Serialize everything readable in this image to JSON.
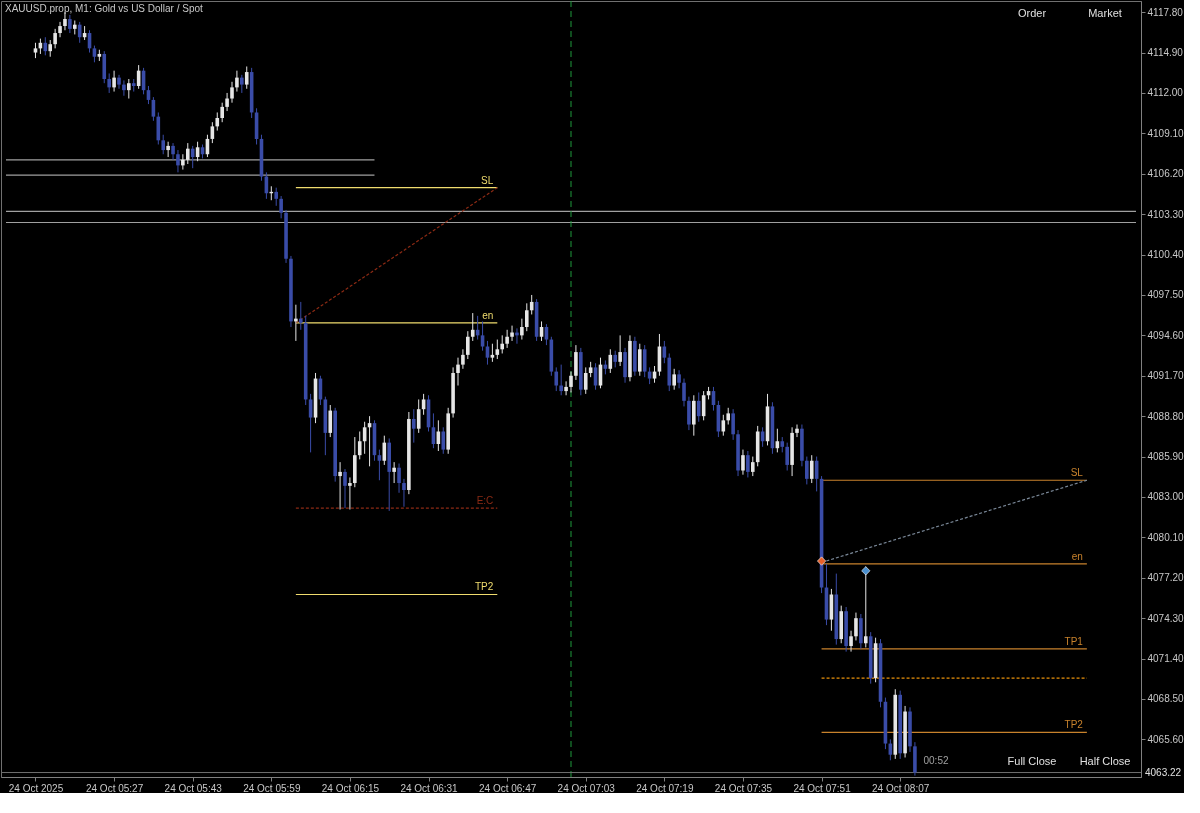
{
  "chart_data": {
    "type": "candlestick",
    "title": "XAUUSD.prop, M1:  Gold vs US Dollar / Spot",
    "x": [
      "2025-10-24T05:11",
      "2025-10-24T05:12",
      "2025-10-24T05:13",
      "2025-10-24T05:14",
      "2025-10-24T05:15",
      "2025-10-24T05:16",
      "2025-10-24T05:17",
      "2025-10-24T05:18",
      "2025-10-24T05:19",
      "2025-10-24T05:20",
      "2025-10-24T05:21",
      "2025-10-24T05:22",
      "2025-10-24T05:23",
      "2025-10-24T05:24",
      "2025-10-24T05:25",
      "2025-10-24T05:26",
      "2025-10-24T05:27",
      "2025-10-24T05:28",
      "2025-10-24T05:29",
      "2025-10-24T05:30",
      "2025-10-24T05:31",
      "2025-10-24T05:32",
      "2025-10-24T05:33",
      "2025-10-24T05:34",
      "2025-10-24T05:35",
      "2025-10-24T05:36",
      "2025-10-24T05:37",
      "2025-10-24T05:38",
      "2025-10-24T05:39",
      "2025-10-24T05:40",
      "2025-10-24T05:41",
      "2025-10-24T05:42",
      "2025-10-24T05:43",
      "2025-10-24T05:44",
      "2025-10-24T05:45",
      "2025-10-24T05:46",
      "2025-10-24T05:47",
      "2025-10-24T05:48",
      "2025-10-24T05:49",
      "2025-10-24T05:50",
      "2025-10-24T05:51",
      "2025-10-24T05:52",
      "2025-10-24T05:53",
      "2025-10-24T05:54",
      "2025-10-24T05:55",
      "2025-10-24T05:56",
      "2025-10-24T05:57",
      "2025-10-24T05:58",
      "2025-10-24T05:59",
      "2025-10-24T06:00",
      "2025-10-24T06:01",
      "2025-10-24T06:02",
      "2025-10-24T06:03",
      "2025-10-24T06:04",
      "2025-10-24T06:05",
      "2025-10-24T06:06",
      "2025-10-24T06:07",
      "2025-10-24T06:08",
      "2025-10-24T06:09",
      "2025-10-24T06:10",
      "2025-10-24T06:11",
      "2025-10-24T06:12",
      "2025-10-24T06:13",
      "2025-10-24T06:14",
      "2025-10-24T06:15",
      "2025-10-24T06:16",
      "2025-10-24T06:17",
      "2025-10-24T06:18",
      "2025-10-24T06:19",
      "2025-10-24T06:20",
      "2025-10-24T06:21",
      "2025-10-24T06:22",
      "2025-10-24T06:23",
      "2025-10-24T06:24",
      "2025-10-24T06:25",
      "2025-10-24T06:26",
      "2025-10-24T06:27",
      "2025-10-24T06:28",
      "2025-10-24T06:29",
      "2025-10-24T06:30",
      "2025-10-24T06:31",
      "2025-10-24T06:32",
      "2025-10-24T06:33",
      "2025-10-24T06:34",
      "2025-10-24T06:35",
      "2025-10-24T06:36",
      "2025-10-24T06:37",
      "2025-10-24T06:38",
      "2025-10-24T06:39",
      "2025-10-24T06:40",
      "2025-10-24T06:41",
      "2025-10-24T06:42",
      "2025-10-24T06:43",
      "2025-10-24T06:44",
      "2025-10-24T06:45",
      "2025-10-24T06:46",
      "2025-10-24T06:47",
      "2025-10-24T06:48",
      "2025-10-24T06:49",
      "2025-10-24T06:50",
      "2025-10-24T06:51",
      "2025-10-24T06:52",
      "2025-10-24T06:53",
      "2025-10-24T06:54",
      "2025-10-24T06:55",
      "2025-10-24T06:56",
      "2025-10-24T06:57",
      "2025-10-24T06:58",
      "2025-10-24T06:59",
      "2025-10-24T07:00",
      "2025-10-24T07:01",
      "2025-10-24T07:02",
      "2025-10-24T07:03",
      "2025-10-24T07:04",
      "2025-10-24T07:05",
      "2025-10-24T07:06",
      "2025-10-24T07:07",
      "2025-10-24T07:08",
      "2025-10-24T07:09",
      "2025-10-24T07:10",
      "2025-10-24T07:11",
      "2025-10-24T07:12",
      "2025-10-24T07:13",
      "2025-10-24T07:14",
      "2025-10-24T07:15",
      "2025-10-24T07:16",
      "2025-10-24T07:17",
      "2025-10-24T07:18",
      "2025-10-24T07:19",
      "2025-10-24T07:20",
      "2025-10-24T07:21",
      "2025-10-24T07:22",
      "2025-10-24T07:23",
      "2025-10-24T07:24",
      "2025-10-24T07:25",
      "2025-10-24T07:26",
      "2025-10-24T07:27",
      "2025-10-24T07:28",
      "2025-10-24T07:29",
      "2025-10-24T07:30",
      "2025-10-24T07:31",
      "2025-10-24T07:32",
      "2025-10-24T07:33",
      "2025-10-24T07:34",
      "2025-10-24T07:35",
      "2025-10-24T07:36",
      "2025-10-24T07:37",
      "2025-10-24T07:38",
      "2025-10-24T07:39",
      "2025-10-24T07:40",
      "2025-10-24T07:41",
      "2025-10-24T07:42",
      "2025-10-24T07:43",
      "2025-10-24T07:44",
      "2025-10-24T07:45",
      "2025-10-24T07:46",
      "2025-10-24T07:47",
      "2025-10-24T07:48",
      "2025-10-24T07:49",
      "2025-10-24T07:50",
      "2025-10-24T07:51",
      "2025-10-24T07:52",
      "2025-10-24T07:53",
      "2025-10-24T07:54",
      "2025-10-24T07:55",
      "2025-10-24T07:56",
      "2025-10-24T07:57",
      "2025-10-24T07:58",
      "2025-10-24T07:59",
      "2025-10-24T08:00",
      "2025-10-24T08:01",
      "2025-10-24T08:02",
      "2025-10-24T08:03",
      "2025-10-24T08:04",
      "2025-10-24T08:05",
      "2025-10-24T08:06",
      "2025-10-24T08:07",
      "2025-10-24T08:08",
      "2025-10-24T08:09",
      "2025-10-24T08:10"
    ],
    "ohlc": [
      [
        4114.9,
        4115.6,
        4114.5,
        4115.2
      ],
      [
        4115.2,
        4115.9,
        4114.8,
        4115.6
      ],
      [
        4115.6,
        4116.0,
        4114.7,
        4115.0
      ],
      [
        4115.0,
        4115.8,
        4114.6,
        4115.5
      ],
      [
        4115.5,
        4116.6,
        4115.2,
        4116.3
      ],
      [
        4116.3,
        4117.1,
        4116.0,
        4116.8
      ],
      [
        4116.8,
        4117.8,
        4116.5,
        4117.3
      ],
      [
        4117.3,
        4117.6,
        4116.3,
        4116.6
      ],
      [
        4116.6,
        4117.2,
        4116.2,
        4116.9
      ],
      [
        4116.9,
        4117.1,
        4115.6,
        4116.0
      ],
      [
        4116.0,
        4116.8,
        4115.8,
        4116.3
      ],
      [
        4116.3,
        4116.5,
        4114.9,
        4115.2
      ],
      [
        4115.2,
        4115.4,
        4114.2,
        4114.6
      ],
      [
        4114.6,
        4115.1,
        4114.3,
        4114.8
      ],
      [
        4114.8,
        4115.0,
        4112.7,
        4113.0
      ],
      [
        4113.0,
        4113.4,
        4112.0,
        4112.4
      ],
      [
        4112.4,
        4113.6,
        4112.1,
        4113.1
      ],
      [
        4113.1,
        4113.3,
        4112.3,
        4112.6
      ],
      [
        4112.6,
        4112.9,
        4111.8,
        4112.2
      ],
      [
        4112.2,
        4113.0,
        4111.6,
        4112.7
      ],
      [
        4112.7,
        4113.0,
        4112.1,
        4112.5
      ],
      [
        4112.5,
        4114.0,
        4112.3,
        4113.6
      ],
      [
        4113.6,
        4113.8,
        4111.9,
        4112.2
      ],
      [
        4112.2,
        4112.5,
        4111.2,
        4111.5
      ],
      [
        4111.5,
        4111.7,
        4110.0,
        4110.3
      ],
      [
        4110.3,
        4110.6,
        4108.3,
        4108.6
      ],
      [
        4108.6,
        4109.0,
        4107.6,
        4107.9
      ],
      [
        4107.9,
        4108.5,
        4107.4,
        4108.2
      ],
      [
        4108.2,
        4108.4,
        4107.2,
        4107.6
      ],
      [
        4107.6,
        4107.9,
        4106.3,
        4106.8
      ],
      [
        4106.8,
        4107.6,
        4106.5,
        4107.2
      ],
      [
        4107.2,
        4108.4,
        4106.9,
        4108.0
      ],
      [
        4108.0,
        4108.2,
        4106.6,
        4107.4
      ],
      [
        4107.4,
        4108.5,
        4107.1,
        4108.1
      ],
      [
        4108.1,
        4108.3,
        4107.3,
        4107.6
      ],
      [
        4107.6,
        4109.0,
        4107.4,
        4108.7
      ],
      [
        4108.7,
        4109.9,
        4108.4,
        4109.6
      ],
      [
        4109.6,
        4110.6,
        4109.3,
        4110.2
      ],
      [
        4110.2,
        4111.3,
        4109.9,
        4111.0
      ],
      [
        4111.0,
        4112.0,
        4110.7,
        4111.6
      ],
      [
        4111.6,
        4112.8,
        4111.3,
        4112.4
      ],
      [
        4112.4,
        4113.6,
        4112.1,
        4113.1
      ],
      [
        4113.1,
        4113.3,
        4112.0,
        4112.6
      ],
      [
        4112.6,
        4113.9,
        4112.3,
        4113.5
      ],
      [
        4113.5,
        4113.8,
        4110.2,
        4110.6
      ],
      [
        4110.6,
        4110.9,
        4108.3,
        4108.7
      ],
      [
        4108.7,
        4109.0,
        4105.7,
        4106.0
      ],
      [
        4106.0,
        4106.3,
        4104.4,
        4104.8
      ],
      [
        4104.8,
        4105.3,
        4104.3,
        4104.9
      ],
      [
        4104.9,
        4105.2,
        4103.9,
        4104.4
      ],
      [
        4104.4,
        4104.6,
        4103.0,
        4103.4
      ],
      [
        4103.4,
        4103.6,
        4099.8,
        4100.1
      ],
      [
        4100.1,
        4100.3,
        4095.2,
        4095.6
      ],
      [
        4095.6,
        4096.8,
        4094.2,
        4095.8
      ],
      [
        4095.8,
        4097.0,
        4095.0,
        4095.5
      ],
      [
        4095.5,
        4096.0,
        4089.6,
        4090.0
      ],
      [
        4090.0,
        4090.4,
        4086.2,
        4088.7
      ],
      [
        4088.7,
        4091.9,
        4088.3,
        4091.5
      ],
      [
        4091.5,
        4091.7,
        4089.6,
        4090.0
      ],
      [
        4090.0,
        4090.2,
        4086.0,
        4087.6
      ],
      [
        4087.6,
        4089.6,
        4087.3,
        4089.2
      ],
      [
        4089.2,
        4089.4,
        4084.1,
        4084.5
      ],
      [
        4084.5,
        4085.5,
        4082.1,
        4084.8
      ],
      [
        4084.8,
        4085.0,
        4082.2,
        4083.8
      ],
      [
        4083.8,
        4084.4,
        4082.1,
        4084.0
      ],
      [
        4084.0,
        4087.3,
        4083.7,
        4086.0
      ],
      [
        4086.0,
        4087.7,
        4085.7,
        4087.0
      ],
      [
        4087.0,
        4088.4,
        4086.1,
        4088.0
      ],
      [
        4088.0,
        4088.8,
        4085.2,
        4088.3
      ],
      [
        4088.3,
        4088.5,
        4085.6,
        4086.0
      ],
      [
        4086.0,
        4086.4,
        4084.2,
        4085.6
      ],
      [
        4085.6,
        4087.4,
        4085.3,
        4086.9
      ],
      [
        4086.9,
        4087.2,
        4082.0,
        4084.8
      ],
      [
        4084.8,
        4085.5,
        4084.0,
        4085.1
      ],
      [
        4085.1,
        4085.4,
        4083.3,
        4084.0
      ],
      [
        4084.0,
        4084.3,
        4082.3,
        4083.5
      ],
      [
        4083.5,
        4089.1,
        4083.2,
        4088.6
      ],
      [
        4088.6,
        4089.3,
        4086.9,
        4087.9
      ],
      [
        4087.9,
        4090.0,
        4087.6,
        4089.3
      ],
      [
        4089.3,
        4090.4,
        4088.9,
        4090.0
      ],
      [
        4090.0,
        4090.3,
        4087.7,
        4088.0
      ],
      [
        4088.0,
        4089.0,
        4086.5,
        4086.8
      ],
      [
        4086.8,
        4088.5,
        4086.3,
        4087.7
      ],
      [
        4087.7,
        4088.0,
        4086.1,
        4086.4
      ],
      [
        4086.4,
        4089.4,
        4086.1,
        4089.0
      ],
      [
        4089.0,
        4092.3,
        4088.7,
        4091.9
      ],
      [
        4091.9,
        4093.0,
        4091.0,
        4092.5
      ],
      [
        4092.5,
        4093.6,
        4092.2,
        4093.2
      ],
      [
        4093.2,
        4094.9,
        4092.9,
        4094.5
      ],
      [
        4094.5,
        4096.2,
        4094.2,
        4095.0
      ],
      [
        4095.0,
        4096.0,
        4094.3,
        4094.6
      ],
      [
        4094.6,
        4095.6,
        4093.5,
        4093.8
      ],
      [
        4093.8,
        4094.2,
        4092.5,
        4093.0
      ],
      [
        4093.0,
        4094.0,
        4092.7,
        4093.2
      ],
      [
        4093.2,
        4094.3,
        4092.9,
        4093.6
      ],
      [
        4093.6,
        4094.6,
        4093.3,
        4094.0
      ],
      [
        4094.0,
        4095.0,
        4093.7,
        4094.5
      ],
      [
        4094.5,
        4095.3,
        4094.2,
        4094.8
      ],
      [
        4094.8,
        4095.1,
        4094.0,
        4094.6
      ],
      [
        4094.6,
        4095.8,
        4094.3,
        4095.2
      ],
      [
        4095.2,
        4096.9,
        4094.9,
        4096.4
      ],
      [
        4096.4,
        4097.5,
        4096.1,
        4097.0
      ],
      [
        4097.0,
        4097.2,
        4094.2,
        4094.5
      ],
      [
        4094.5,
        4095.6,
        4094.2,
        4095.2
      ],
      [
        4095.2,
        4095.4,
        4093.9,
        4094.3
      ],
      [
        4094.3,
        4094.5,
        4091.7,
        4092.0
      ],
      [
        4092.0,
        4092.3,
        4090.6,
        4091.0
      ],
      [
        4091.0,
        4092.5,
        4090.3,
        4090.6
      ],
      [
        4090.6,
        4091.3,
        4090.3,
        4090.9
      ],
      [
        4090.9,
        4092.0,
        4090.5,
        4091.7
      ],
      [
        4091.7,
        4093.9,
        4091.4,
        4093.4
      ],
      [
        4093.4,
        4093.7,
        4090.3,
        4090.7
      ],
      [
        4090.7,
        4092.3,
        4090.4,
        4091.9
      ],
      [
        4091.9,
        4092.7,
        4091.6,
        4092.3
      ],
      [
        4092.3,
        4092.6,
        4090.7,
        4091.0
      ],
      [
        4091.0,
        4093.0,
        4090.8,
        4092.5
      ],
      [
        4092.5,
        4092.8,
        4091.8,
        4092.2
      ],
      [
        4092.2,
        4093.6,
        4091.9,
        4093.2
      ],
      [
        4093.2,
        4093.5,
        4092.3,
        4092.7
      ],
      [
        4092.7,
        4094.6,
        4092.4,
        4093.4
      ],
      [
        4093.4,
        4093.7,
        4091.2,
        4091.6
      ],
      [
        4091.6,
        4094.6,
        4091.3,
        4094.2
      ],
      [
        4094.2,
        4094.5,
        4091.7,
        4092.0
      ],
      [
        4092.0,
        4094.0,
        4091.7,
        4093.6
      ],
      [
        4093.6,
        4093.9,
        4091.6,
        4092.0
      ],
      [
        4092.0,
        4092.3,
        4091.1,
        4091.5
      ],
      [
        4091.5,
        4092.4,
        4091.2,
        4092.0
      ],
      [
        4092.0,
        4094.7,
        4091.7,
        4093.8
      ],
      [
        4093.8,
        4094.2,
        4092.6,
        4093.0
      ],
      [
        4093.0,
        4093.3,
        4090.6,
        4091.0
      ],
      [
        4091.0,
        4092.2,
        4090.7,
        4091.8
      ],
      [
        4091.8,
        4092.1,
        4090.8,
        4091.2
      ],
      [
        4091.2,
        4091.5,
        4089.5,
        4089.9
      ],
      [
        4089.9,
        4090.2,
        4087.8,
        4088.2
      ],
      [
        4088.2,
        4090.3,
        4087.4,
        4089.9
      ],
      [
        4089.9,
        4090.5,
        4088.4,
        4088.8
      ],
      [
        4088.8,
        4090.6,
        4088.5,
        4090.3
      ],
      [
        4090.3,
        4090.9,
        4090.0,
        4090.6
      ],
      [
        4090.6,
        4090.9,
        4089.2,
        4089.6
      ],
      [
        4089.6,
        4089.9,
        4087.3,
        4087.7
      ],
      [
        4087.7,
        4088.9,
        4087.4,
        4088.5
      ],
      [
        4088.5,
        4089.4,
        4088.2,
        4089.0
      ],
      [
        4089.0,
        4089.3,
        4087.1,
        4087.5
      ],
      [
        4087.5,
        4087.8,
        4084.5,
        4084.9
      ],
      [
        4084.9,
        4086.4,
        4084.6,
        4086.0
      ],
      [
        4086.0,
        4086.3,
        4084.4,
        4084.8
      ],
      [
        4084.8,
        4085.9,
        4084.5,
        4085.5
      ],
      [
        4085.5,
        4088.1,
        4085.2,
        4087.7
      ],
      [
        4087.7,
        4088.0,
        4086.6,
        4087.0
      ],
      [
        4087.0,
        4090.4,
        4086.7,
        4089.5
      ],
      [
        4089.5,
        4089.8,
        4086.1,
        4086.5
      ],
      [
        4086.5,
        4087.9,
        4086.2,
        4087.0
      ],
      [
        4087.0,
        4087.3,
        4086.2,
        4086.6
      ],
      [
        4086.6,
        4086.9,
        4084.9,
        4085.3
      ],
      [
        4085.3,
        4088.0,
        4084.5,
        4087.6
      ],
      [
        4087.6,
        4088.2,
        4087.3,
        4087.9
      ],
      [
        4087.9,
        4088.2,
        4085.2,
        4085.6
      ],
      [
        4085.6,
        4085.9,
        4083.9,
        4084.3
      ],
      [
        4084.3,
        4086.0,
        4084.0,
        4085.6
      ],
      [
        4085.6,
        4085.9,
        4083.4,
        4084.3
      ],
      [
        4084.3,
        4084.5,
        4076.1,
        4076.5
      ],
      [
        4076.5,
        4078.2,
        4073.8,
        4074.2
      ],
      [
        4074.2,
        4076.4,
        4073.4,
        4076.0
      ],
      [
        4076.0,
        4077.5,
        4072.4,
        4072.8
      ],
      [
        4072.8,
        4075.2,
        4072.5,
        4074.8
      ],
      [
        4074.8,
        4075.1,
        4071.9,
        4072.3
      ],
      [
        4072.3,
        4073.4,
        4071.9,
        4073.0
      ],
      [
        4073.0,
        4074.7,
        4072.7,
        4074.3
      ],
      [
        4074.3,
        4074.6,
        4072.1,
        4072.5
      ],
      [
        4072.5,
        4078.0,
        4072.2,
        4073.0
      ],
      [
        4073.0,
        4073.3,
        4069.6,
        4070.0
      ],
      [
        4070.0,
        4072.9,
        4069.7,
        4072.5
      ],
      [
        4072.5,
        4072.8,
        4067.9,
        4068.3
      ],
      [
        4068.3,
        4068.6,
        4064.9,
        4065.3
      ],
      [
        4065.3,
        4065.6,
        4064.1,
        4064.5
      ],
      [
        4064.5,
        4069.2,
        4064.2,
        4068.8
      ],
      [
        4068.8,
        4069.1,
        4064.2,
        4064.6
      ],
      [
        4064.6,
        4068.0,
        4064.3,
        4067.6
      ],
      [
        4067.6,
        4067.9,
        4064.7,
        4065.1
      ],
      [
        4065.1,
        4065.4,
        4063.0,
        4063.22
      ]
    ],
    "colors": [
      "#e6e6e6",
      "#e6e6e6",
      "#3a4ca8",
      "#e6e6e6",
      "#e6e6e6",
      "#e6e6e6",
      "#e6e6e6",
      "#3a4ca8",
      "#e6e6e6",
      "#3a4ca8",
      "#e6e6e6",
      "#3a4ca8",
      "#3a4ca8",
      "#e6e6e6",
      "#3a4ca8",
      "#3a4ca8",
      "#e6e6e6",
      "#3a4ca8",
      "#3a4ca8",
      "#e6e6e6",
      "#3a4ca8",
      "#e6e6e6",
      "#3a4ca8",
      "#3a4ca8",
      "#3a4ca8",
      "#3a4ca8",
      "#3a4ca8",
      "#e6e6e6",
      "#3a4ca8",
      "#3a4ca8",
      "#e6e6e6",
      "#e6e6e6",
      "#3a4ca8",
      "#e6e6e6",
      "#3a4ca8",
      "#e6e6e6",
      "#e6e6e6",
      "#e6e6e6",
      "#e6e6e6",
      "#e6e6e6",
      "#e6e6e6",
      "#e6e6e6",
      "#3a4ca8",
      "#e6e6e6",
      "#3a4ca8",
      "#3a4ca8",
      "#3a4ca8",
      "#3a4ca8",
      "#e6e6e6",
      "#3a4ca8",
      "#3a4ca8",
      "#3a4ca8",
      "#3a4ca8",
      "#e6e6e6",
      "#3a4ca8",
      "#3a4ca8",
      "#3a4ca8",
      "#e6e6e6",
      "#3a4ca8",
      "#3a4ca8",
      "#e6e6e6",
      "#3a4ca8",
      "#e6e6e6",
      "#3a4ca8",
      "#e6e6e6",
      "#e6e6e6",
      "#e6e6e6",
      "#e6e6e6",
      "#e6e6e6",
      "#3a4ca8",
      "#3a4ca8",
      "#e6e6e6",
      "#3a4ca8",
      "#e6e6e6",
      "#3a4ca8",
      "#3a4ca8",
      "#e6e6e6",
      "#3a4ca8",
      "#e6e6e6",
      "#e6e6e6",
      "#3a4ca8",
      "#3a4ca8",
      "#e6e6e6",
      "#3a4ca8",
      "#e6e6e6",
      "#e6e6e6",
      "#e6e6e6",
      "#e6e6e6",
      "#e6e6e6",
      "#e6e6e6",
      "#3a4ca8",
      "#3a4ca8",
      "#3a4ca8",
      "#e6e6e6",
      "#e6e6e6",
      "#e6e6e6",
      "#e6e6e6",
      "#e6e6e6",
      "#3a4ca8",
      "#e6e6e6",
      "#e6e6e6",
      "#e6e6e6",
      "#3a4ca8",
      "#e6e6e6",
      "#3a4ca8",
      "#3a4ca8",
      "#3a4ca8",
      "#3a4ca8",
      "#e6e6e6",
      "#e6e6e6",
      "#e6e6e6",
      "#3a4ca8",
      "#e6e6e6",
      "#e6e6e6",
      "#3a4ca8",
      "#e6e6e6",
      "#3a4ca8",
      "#e6e6e6",
      "#3a4ca8",
      "#e6e6e6",
      "#3a4ca8",
      "#e6e6e6",
      "#3a4ca8",
      "#e6e6e6",
      "#3a4ca8",
      "#3a4ca8",
      "#e6e6e6",
      "#e6e6e6",
      "#3a4ca8",
      "#3a4ca8",
      "#e6e6e6",
      "#3a4ca8",
      "#3a4ca8",
      "#3a4ca8",
      "#e6e6e6",
      "#3a4ca8",
      "#e6e6e6",
      "#e6e6e6",
      "#3a4ca8",
      "#3a4ca8",
      "#e6e6e6",
      "#e6e6e6",
      "#3a4ca8",
      "#3a4ca8",
      "#e6e6e6",
      "#3a4ca8",
      "#e6e6e6",
      "#e6e6e6",
      "#3a4ca8",
      "#e6e6e6",
      "#3a4ca8",
      "#e6e6e6",
      "#3a4ca8",
      "#3a4ca8",
      "#e6e6e6",
      "#e6e6e6",
      "#3a4ca8",
      "#3a4ca8",
      "#e6e6e6",
      "#3a4ca8",
      "#3a4ca8",
      "#3a4ca8",
      "#e6e6e6",
      "#3a4ca8",
      "#e6e6e6",
      "#3a4ca8",
      "#e6e6e6",
      "#e6e6e6",
      "#3a4ca8",
      "#e6e6e6",
      "#3a4ca8",
      "#e6e6e6",
      "#3a4ca8",
      "#3a4ca8",
      "#3a4ca8",
      "#e6e6e6",
      "#3a4ca8",
      "#e6e6e6",
      "#3a4ca8",
      "#3a4ca8"
    ],
    "series": [
      {
        "type": "line",
        "color": "#a0a0a0",
        "x": [
          "2025-10-24T05:05",
          "2025-10-24T06:20"
        ],
        "values": [
          4107.2,
          4107.2
        ]
      },
      {
        "type": "line",
        "color": "#a0a0a0",
        "x": [
          "2025-10-24T05:05",
          "2025-10-24T06:20"
        ],
        "values": [
          4106.1,
          4106.1
        ]
      },
      {
        "type": "line",
        "color": "#a0a0a0",
        "x": [
          "2025-10-24T05:05",
          "2025-10-24T08:55"
        ],
        "values": [
          4103.5,
          4103.5
        ]
      },
      {
        "type": "line",
        "color": "#a0a0a0",
        "x": [
          "2025-10-24T05:05",
          "2025-10-24T08:55"
        ],
        "values": [
          4102.7,
          4102.7
        ]
      },
      {
        "type": "line",
        "name": "SL",
        "color": "#f0dc6e",
        "x": [
          "2025-10-24T06:04",
          "2025-10-24T06:45"
        ],
        "values": [
          4105.2,
          4105.2
        ]
      },
      {
        "type": "line",
        "name": "en",
        "color": "#f0dc6e",
        "x": [
          "2025-10-24T06:04",
          "2025-10-24T06:45"
        ],
        "values": [
          4095.5,
          4095.5
        ]
      },
      {
        "type": "line",
        "name": "E:C",
        "color": "#8c2a14",
        "line_style": "dotted",
        "x": [
          "2025-10-24T06:04",
          "2025-10-24T06:45"
        ],
        "values": [
          4082.2,
          4082.2
        ]
      },
      {
        "type": "line",
        "name": "TP2",
        "color": "#f0dc6e",
        "x": [
          "2025-10-24T06:04",
          "2025-10-24T06:45"
        ],
        "values": [
          4076.0,
          4076.0
        ]
      },
      {
        "type": "line",
        "color": "#8c2a14",
        "line_style": "dotted",
        "x": [
          "2025-10-24T06:04",
          "2025-10-24T06:45"
        ],
        "values": [
          4095.5,
          4105.2
        ]
      },
      {
        "type": "line",
        "name": "SL",
        "color": "#c8822c",
        "x": [
          "2025-10-24T07:51",
          "2025-10-24T08:45"
        ],
        "values": [
          4084.2,
          4084.2
        ]
      },
      {
        "type": "line",
        "name": "en",
        "color": "#c8822c",
        "x": [
          "2025-10-24T07:51",
          "2025-10-24T08:45"
        ],
        "values": [
          4078.2,
          4078.2
        ]
      },
      {
        "type": "line",
        "name": "TP1",
        "color": "#c8822c",
        "x": [
          "2025-10-24T07:51",
          "2025-10-24T08:45"
        ],
        "values": [
          4072.1,
          4072.1
        ]
      },
      {
        "type": "line",
        "name": "TP2",
        "color": "#c8822c",
        "x": [
          "2025-10-24T07:51",
          "2025-10-24T08:45"
        ],
        "values": [
          4066.1,
          4066.1
        ]
      },
      {
        "type": "line",
        "color": "#e8900a",
        "line_style": "dotted",
        "x": [
          "2025-10-24T07:51",
          "2025-10-24T08:45"
        ],
        "values": [
          4070.0,
          4070.0
        ]
      },
      {
        "type": "line",
        "color": "#7a8898",
        "line_style": "dotted",
        "x": [
          "2025-10-24T07:51",
          "2025-10-24T08:45"
        ],
        "values": [
          4078.3,
          4084.2
        ]
      },
      {
        "type": "scatter",
        "marker": "diamond",
        "color": "#e8602a",
        "x": [
          "2025-10-24T07:51"
        ],
        "values": [
          4078.4
        ]
      },
      {
        "type": "scatter",
        "marker": "diamond",
        "color": "#4a90d0",
        "x": [
          "2025-10-24T08:00"
        ],
        "values": [
          4077.7
        ]
      }
    ],
    "ref_lines": [
      {
        "axis": "x",
        "value": "2025-10-24T07:00",
        "color": "#1e9a3c",
        "line_style": "dashed"
      },
      {
        "axis": "y",
        "value": 4063.22,
        "label": "4063.22",
        "color": "#707070"
      }
    ],
    "xlim": [
      "2025-10-24T05:05",
      "2025-10-24T08:55"
    ],
    "xticks": [
      {
        "value": "2025-10-24T05:11",
        "label": "24 Oct 2025"
      },
      {
        "value": "2025-10-24T05:27",
        "label": "24 Oct 05:27"
      },
      {
        "value": "2025-10-24T05:43",
        "label": "24 Oct 05:43"
      },
      {
        "value": "2025-10-24T05:59",
        "label": "24 Oct 05:59"
      },
      {
        "value": "2025-10-24T06:15",
        "label": "24 Oct 06:15"
      },
      {
        "value": "2025-10-24T06:31",
        "label": "24 Oct 06:31"
      },
      {
        "value": "2025-10-24T06:47",
        "label": "24 Oct 06:47"
      },
      {
        "value": "2025-10-24T07:03",
        "label": "24 Oct 07:03"
      },
      {
        "value": "2025-10-24T07:19",
        "label": "24 Oct 07:19"
      },
      {
        "value": "2025-10-24T07:35",
        "label": "24 Oct 07:35"
      },
      {
        "value": "2025-10-24T07:51",
        "label": "24 Oct 07:51"
      },
      {
        "value": "2025-10-24T08:07",
        "label": "24 Oct 08:07"
      }
    ],
    "ylim": [
      4062.9,
      4118.6
    ],
    "yticks": [
      {
        "value": 4117.8,
        "label": "4117.80"
      },
      {
        "value": 4114.9,
        "label": "4114.90"
      },
      {
        "value": 4112.0,
        "label": "4112.00"
      },
      {
        "value": 4109.1,
        "label": "4109.10"
      },
      {
        "value": 4106.2,
        "label": "4106.20"
      },
      {
        "value": 4103.3,
        "label": "4103.30"
      },
      {
        "value": 4100.4,
        "label": "4100.40"
      },
      {
        "value": 4097.5,
        "label": "4097.50"
      },
      {
        "value": 4094.6,
        "label": "4094.60"
      },
      {
        "value": 4091.7,
        "label": "4091.70"
      },
      {
        "value": 4088.8,
        "label": "4088.80"
      },
      {
        "value": 4085.9,
        "label": "4085.90"
      },
      {
        "value": 4083.0,
        "label": "4083.00"
      },
      {
        "value": 4080.1,
        "label": "4080.10"
      },
      {
        "value": 4077.2,
        "label": "4077.20"
      },
      {
        "value": 4074.3,
        "label": "4074.30"
      },
      {
        "value": 4071.4,
        "label": "4071.40"
      },
      {
        "value": 4068.5,
        "label": "4068.50"
      },
      {
        "value": 4065.6,
        "label": "4065.60"
      }
    ],
    "annotations": [
      "Order",
      "Market",
      "Full Close",
      "Half Close",
      "00:52"
    ]
  }
}
